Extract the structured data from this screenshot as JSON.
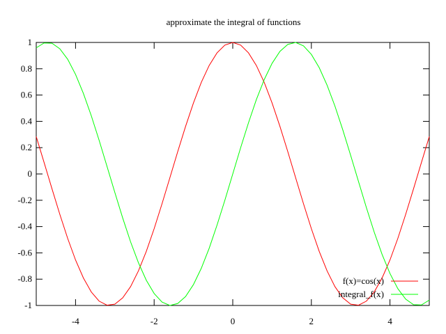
{
  "chart_data": {
    "type": "line",
    "title": "approximate the integral of functions",
    "xlabel": "",
    "ylabel": "",
    "xlim": [
      -5,
      5
    ],
    "ylim": [
      -1,
      1
    ],
    "grid": false,
    "legend_position": "bottom-right",
    "x_ticks": [
      {
        "value": -4,
        "label": "-4"
      },
      {
        "value": -2,
        "label": "-2"
      },
      {
        "value": 0,
        "label": "0"
      },
      {
        "value": 2,
        "label": "2"
      },
      {
        "value": 4,
        "label": "4"
      }
    ],
    "y_ticks": [
      {
        "value": 1,
        "label": "1"
      },
      {
        "value": 0.8,
        "label": "0.8"
      },
      {
        "value": 0.6,
        "label": "0.6"
      },
      {
        "value": 0.4,
        "label": "0.4"
      },
      {
        "value": 0.2,
        "label": "0.2"
      },
      {
        "value": 0,
        "label": "0"
      },
      {
        "value": -0.2,
        "label": "-0.2"
      },
      {
        "value": -0.4,
        "label": "-0.4"
      },
      {
        "value": -0.6,
        "label": "-0.6"
      },
      {
        "value": -0.8,
        "label": "-0.8"
      },
      {
        "value": -1,
        "label": "-1"
      }
    ],
    "x": [
      -5.0,
      -4.8,
      -4.6,
      -4.4,
      -4.2,
      -4.0,
      -3.8,
      -3.6,
      -3.4,
      -3.2,
      -3.0,
      -2.8,
      -2.6,
      -2.4,
      -2.2,
      -2.0,
      -1.8,
      -1.6,
      -1.4,
      -1.2,
      -1.0,
      -0.8,
      -0.6,
      -0.4,
      -0.2,
      0.0,
      0.2,
      0.4,
      0.6,
      0.8,
      1.0,
      1.2,
      1.4,
      1.6,
      1.8,
      2.0,
      2.2,
      2.4,
      2.6,
      2.8,
      3.0,
      3.2,
      3.4,
      3.6,
      3.8,
      4.0,
      4.2,
      4.4,
      4.6,
      4.8,
      5.0
    ],
    "series": [
      {
        "name": "f(x)=cos(x)",
        "color": "#ff0000",
        "values": [
          0.284,
          0.087,
          -0.112,
          -0.307,
          -0.49,
          -0.654,
          -0.791,
          -0.897,
          -0.967,
          -0.998,
          -0.99,
          -0.942,
          -0.857,
          -0.737,
          -0.589,
          -0.416,
          -0.227,
          -0.029,
          0.17,
          0.362,
          0.54,
          0.697,
          0.825,
          0.921,
          0.98,
          1.0,
          0.98,
          0.921,
          0.825,
          0.697,
          0.54,
          0.362,
          0.17,
          -0.029,
          -0.227,
          -0.416,
          -0.589,
          -0.737,
          -0.857,
          -0.942,
          -0.99,
          -0.998,
          -0.967,
          -0.897,
          -0.791,
          -0.654,
          -0.49,
          -0.307,
          -0.112,
          0.087,
          0.284
        ]
      },
      {
        "name": "integral_f(x)",
        "color": "#00ff00",
        "values": [
          0.959,
          0.996,
          0.994,
          0.952,
          0.872,
          0.757,
          0.612,
          0.443,
          0.256,
          0.058,
          -0.141,
          -0.335,
          -0.516,
          -0.675,
          -0.808,
          -0.909,
          -0.974,
          -1.0,
          -0.985,
          -0.932,
          -0.841,
          -0.717,
          -0.565,
          -0.389,
          -0.199,
          0.0,
          0.199,
          0.389,
          0.565,
          0.717,
          0.841,
          0.932,
          0.985,
          1.0,
          0.974,
          0.909,
          0.808,
          0.675,
          0.516,
          0.335,
          0.141,
          -0.058,
          -0.256,
          -0.443,
          -0.612,
          -0.757,
          -0.872,
          -0.952,
          -0.994,
          -0.996,
          -0.959
        ]
      }
    ]
  }
}
